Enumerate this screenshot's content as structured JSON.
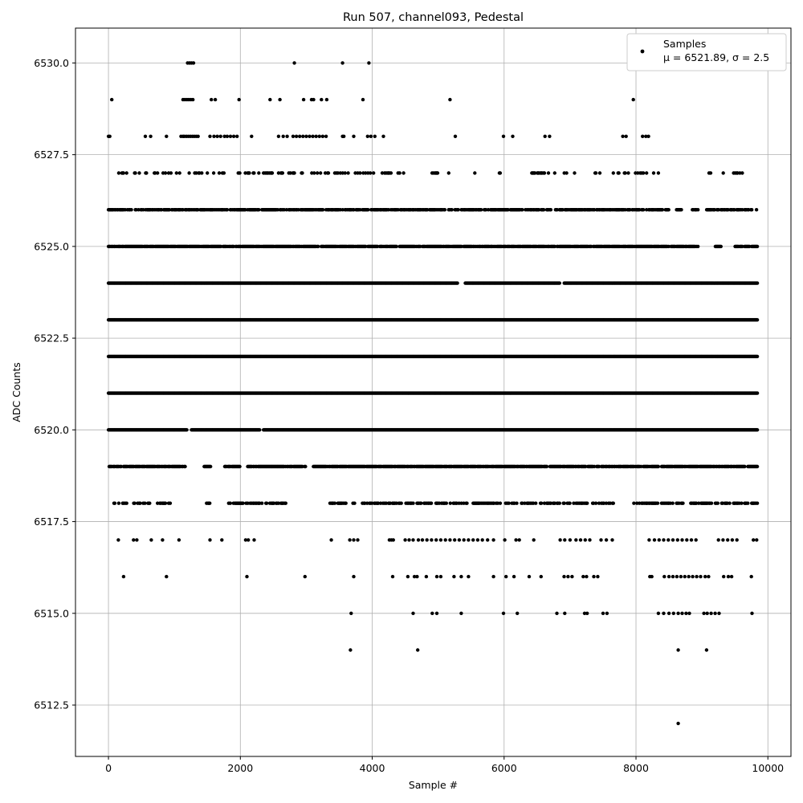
{
  "chart_data": {
    "type": "scatter",
    "title": "Run 507, channel093, Pedestal",
    "xlabel": "Sample #",
    "ylabel": "ADC Counts",
    "xlim": [
      -500,
      10350
    ],
    "ylim": [
      6511.1,
      6530.95
    ],
    "xticks": [
      0,
      2000,
      4000,
      6000,
      8000,
      10000
    ],
    "xtick_labels": [
      "0",
      "2000",
      "4000",
      "6000",
      "8000",
      "10000"
    ],
    "yticks": [
      6512.5,
      6515.0,
      6517.5,
      6520.0,
      6522.5,
      6525.0,
      6527.5,
      6530.0
    ],
    "ytick_labels": [
      "6512.5",
      "6515.0",
      "6517.5",
      "6520.0",
      "6522.5",
      "6525.0",
      "6527.5",
      "6530.0"
    ],
    "grid": true,
    "legend_position": "top-right",
    "series": [
      {
        "name": "Samples",
        "color": "#000000",
        "mean": 6521.89,
        "std": 2.5,
        "n_samples": 9850,
        "levels": [
          {
            "y": 6530,
            "x": [
              1200,
              1230,
              1260,
              1290,
              2820,
              3550,
              3950
            ]
          },
          {
            "y": 6529,
            "x": [
              50,
              1130,
              1160,
              1190,
              1220,
              1250,
              1280,
              1560,
              1620,
              1980,
              2450,
              2600,
              2960,
              3080,
              3110,
              3230,
              3310,
              3860,
              5180,
              7960
            ]
          },
          {
            "y": 6528,
            "x": [
              0,
              20,
              560,
              640,
              880,
              1100,
              1130,
              1150,
              1180,
              1210,
              1240,
              1270,
              1300,
              1330,
              1360,
              1540,
              1600,
              1650,
              1700,
              1760,
              1800,
              1850,
              1900,
              1950,
              2170,
              2580,
              2650,
              2710,
              2800,
              2850,
              2900,
              2950,
              3000,
              3050,
              3100,
              3150,
              3200,
              3250,
              3300,
              3550,
              3570,
              3720,
              3930,
              3980,
              4040,
              4170,
              5260,
              5990,
              6130,
              6620,
              6690,
              7800,
              7850,
              8100,
              8150,
              8190
            ]
          },
          {
            "range": [
              0,
              9850
            ],
            "y": 6527,
            "density": 0.25,
            "gaps": [
              [
                4500,
                4900
              ],
              [
                5000,
                5150
              ],
              [
                5200,
                5550
              ],
              [
                5600,
                5900
              ],
              [
                5950,
                6300
              ],
              [
                6800,
                6900
              ],
              [
                7100,
                7350
              ],
              [
                7500,
                7650
              ],
              [
                8400,
                9100
              ],
              [
                9200,
                9300
              ]
            ]
          },
          {
            "range": [
              0,
              9850
            ],
            "y": 6526,
            "density": 0.7,
            "gaps": [
              [
                8500,
                8600
              ],
              [
                8700,
                8850
              ],
              [
                8950,
                9050
              ]
            ]
          },
          {
            "range": [
              0,
              9850
            ],
            "y": 6525,
            "density": 0.85,
            "gaps": [
              [
                8950,
                9200
              ],
              [
                9300,
                9500
              ]
            ]
          },
          {
            "range": [
              0,
              9850
            ],
            "y": 6524,
            "density": 1.0,
            "gaps": [
              [
                5300,
                5400
              ],
              [
                6850,
                6900
              ]
            ]
          },
          {
            "range": [
              0,
              9850
            ],
            "y": 6523,
            "density": 1.0,
            "gaps": []
          },
          {
            "range": [
              0,
              9850
            ],
            "y": 6522,
            "density": 1.0,
            "gaps": []
          },
          {
            "range": [
              0,
              9850
            ],
            "y": 6521,
            "density": 1.0,
            "gaps": []
          },
          {
            "range": [
              0,
              9850
            ],
            "y": 6520,
            "density": 1.0,
            "gaps": [
              [
                1200,
                1250
              ],
              [
                2300,
                2350
              ]
            ]
          },
          {
            "range": [
              0,
              9850
            ],
            "y": 6519,
            "density": 0.85,
            "gaps": [
              [
                1200,
                1450
              ],
              [
                1550,
                1750
              ],
              [
                2000,
                2100
              ],
              [
                3000,
                3100
              ]
            ]
          },
          {
            "range": [
              0,
              9850
            ],
            "y": 6518,
            "density": 0.45,
            "gaps": [
              [
                0,
                50
              ],
              [
                100,
                150
              ],
              [
                950,
                1450
              ],
              [
                1550,
                1800
              ],
              [
                2700,
                3350
              ],
              [
                7700,
                7950
              ]
            ]
          },
          {
            "x": [
              150,
              380,
              430,
              650,
              820,
              1070,
              1540,
              1720,
              2080,
              2120,
              2210,
              3380,
              3660,
              3720,
              3780,
              4260,
              4290,
              4320,
              4500,
              4560,
              4620,
              4700,
              4760,
              4830,
              4900,
              4970,
              5040,
              5110,
              5180,
              5250,
              5320,
              5390,
              5460,
              5530,
              5600,
              5670,
              5750,
              5840,
              6010,
              6180,
              6230,
              6450,
              6850,
              6920,
              7000,
              7090,
              7160,
              7230,
              7300,
              7470,
              7550,
              7640,
              8200,
              8280,
              8350,
              8420,
              8490,
              8560,
              8630,
              8700,
              8770,
              8840,
              8910,
              9250,
              9320,
              9390,
              9460,
              9530,
              9780,
              9830
            ],
            "y": 6517
          },
          {
            "x": [
              230,
              880,
              2100,
              2980,
              3720,
              4310,
              4540,
              4640,
              4680,
              4820,
              4980,
              5040,
              5240,
              5350,
              5460,
              5840,
              6030,
              6150,
              6380,
              6560,
              6910,
              6970,
              7030,
              7200,
              7250,
              7360,
              7420,
              8210,
              8240,
              8430,
              8500,
              8560,
              8620,
              8680,
              8740,
              8800,
              8860,
              8920,
              8980,
              9050,
              9100,
              9330,
              9400,
              9450,
              9750
            ],
            "y": 6516
          },
          {
            "x": [
              3680,
              4620,
              4910,
              4980,
              5350,
              5990,
              6200,
              6800,
              6920,
              7220,
              7260,
              7500,
              7560,
              8340,
              8420,
              8500,
              8570,
              8640,
              8700,
              8760,
              8810,
              9030,
              9080,
              9140,
              9200,
              9260,
              9760
            ],
            "y": 6515
          },
          {
            "x": [
              3670,
              4690,
              8640,
              9070
            ],
            "y": 6514
          },
          {
            "x": [
              8640
            ],
            "y": 6512
          }
        ]
      }
    ],
    "legend": {
      "entry_label": "Samples",
      "stats_label": "μ = 6521.89, σ = 2.5"
    }
  }
}
